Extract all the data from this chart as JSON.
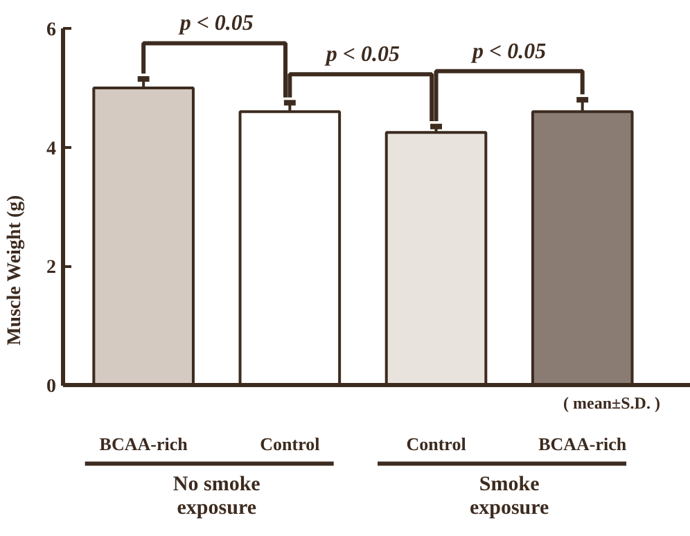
{
  "chart_data": {
    "type": "bar",
    "ylabel": "Muscle Weight (g)",
    "categories": [
      "BCAA-rich",
      "Control",
      "Control",
      "BCAA-rich"
    ],
    "values": [
      5.0,
      4.6,
      4.25,
      4.6
    ],
    "errors": [
      0.15,
      0.15,
      0.1,
      0.2
    ],
    "colors": [
      "#d4cac1",
      "#ffffff",
      "#e8e3dd",
      "#8a7c73"
    ],
    "ylim": [
      0,
      6
    ],
    "yticks": [
      0,
      2,
      4,
      6
    ],
    "grid": false,
    "annotations": [
      "p < 0.05",
      "p < 0.05",
      "p < 0.05",
      "( mean±S.D. )",
      "No smoke exposure",
      "Smoke exposure"
    ]
  }
}
